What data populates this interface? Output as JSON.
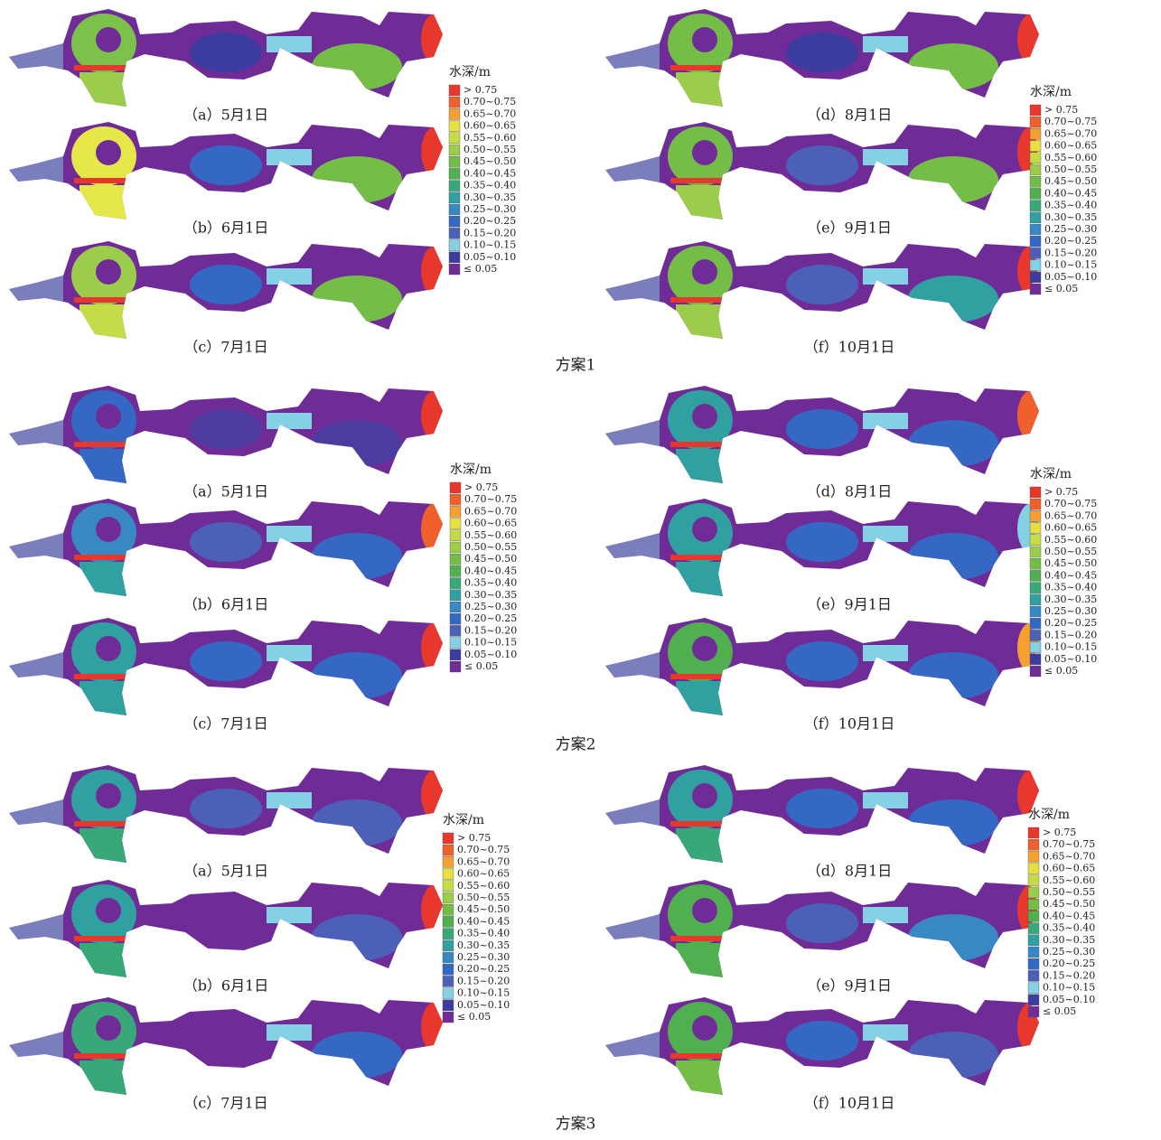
{
  "legend": {
    "title": "水深/m",
    "items": [
      {
        "label": "> 0.75",
        "color": "#e8382e"
      },
      {
        "label": "0.70~0.75",
        "color": "#f0602c"
      },
      {
        "label": "0.65~0.70",
        "color": "#f5a030"
      },
      {
        "label": "0.60~0.65",
        "color": "#e8e040"
      },
      {
        "label": "0.55~0.60",
        "color": "#c4dc48"
      },
      {
        "label": "0.50~0.55",
        "color": "#9ccc4c"
      },
      {
        "label": "0.45~0.50",
        "color": "#74be48"
      },
      {
        "label": "0.40~0.45",
        "color": "#50b050"
      },
      {
        "label": "0.35~0.40",
        "color": "#38a878"
      },
      {
        "label": "0.30~0.35",
        "color": "#30a0a0"
      },
      {
        "label": "0.25~0.30",
        "color": "#3888c4"
      },
      {
        "label": "0.20~0.25",
        "color": "#3468c4"
      },
      {
        "label": "0.15~0.20",
        "color": "#4c60b8"
      },
      {
        "label": "0.10~0.15",
        "color": "#84d0e4"
      },
      {
        "label": "0.05~0.10",
        "color": "#3c3ca0"
      },
      {
        "label": "≤ 0.05",
        "color": "#702c96"
      }
    ]
  },
  "schemes": [
    {
      "label": "方案1",
      "panels": [
        "（a）5月1日",
        "（b）6月1日",
        "（c）7月1日",
        "（d）8月1日",
        "（e）9月1日",
        "（f）10月1日"
      ]
    },
    {
      "label": "方案2",
      "panels": [
        "（a）5月1日",
        "（b）6月1日",
        "（c）7月1日",
        "（d）8月1日",
        "（e）9月1日",
        "（f）10月1日"
      ]
    },
    {
      "label": "方案3",
      "panels": [
        "（a）5月1日",
        "（b）6月1日",
        "（c）7月1日",
        "（d）8月1日",
        "（e）9月1日",
        "（f）10月1日"
      ]
    }
  ]
}
